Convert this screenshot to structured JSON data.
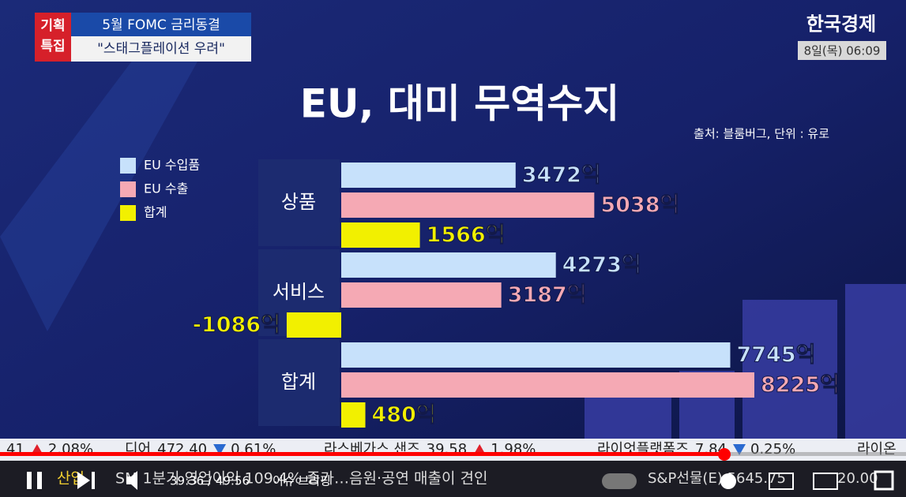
{
  "header": {
    "badge": [
      "기획",
      "특집"
    ],
    "headline": [
      "5월 FOMC 금리동결",
      "\"스태그플레이션 우려\""
    ],
    "broadcaster": "한국경제",
    "datetime": "8일(목) 06:09"
  },
  "chart_data": {
    "type": "bar",
    "orientation": "horizontal",
    "title": "EU, 대미 무역수지",
    "subtitle": "출처: 블룸버그, 단위 : 유로",
    "categories": [
      "상품",
      "서비스",
      "합계"
    ],
    "series": [
      {
        "name": "EU 수입품",
        "color": "#c7e1fb",
        "values": [
          3472,
          4273,
          7745
        ],
        "value_labels": [
          "3472억",
          "4273억",
          "7745억"
        ]
      },
      {
        "name": "EU 수출",
        "color": "#f5a9b4",
        "values": [
          5038,
          3187,
          8225
        ],
        "value_labels": [
          "5038억",
          "3187억",
          "8225억"
        ]
      },
      {
        "name": "합계",
        "color": "#f2f000",
        "values": [
          1566,
          -1086,
          480
        ],
        "value_labels": [
          "1566억",
          "-1086억",
          "480억"
        ]
      }
    ]
  },
  "ticker": [
    {
      "name": "",
      "price": "41",
      "change": "2.08%"
    },
    {
      "name": "디어",
      "price": "472.40",
      "change": "0.61%"
    },
    {
      "name": "라스베가스 샌즈",
      "price": "39.58",
      "change": "1.98%"
    },
    {
      "name": "라이엇플랫폼즈",
      "price": "7.84",
      "change": "0.25%"
    },
    {
      "name": "라이온",
      "price": "",
      "change": ""
    }
  ],
  "news_bar": {
    "section": "산업",
    "text": "SM 1분기 영업이익 109.4% 증가…음원·공연 매출이 견인",
    "index": "S&P선물(E) 5645.75",
    "index_change": "20.00"
  },
  "player": {
    "time": "39:36 / 49:56",
    "chapter": "이슈 브리핑"
  }
}
